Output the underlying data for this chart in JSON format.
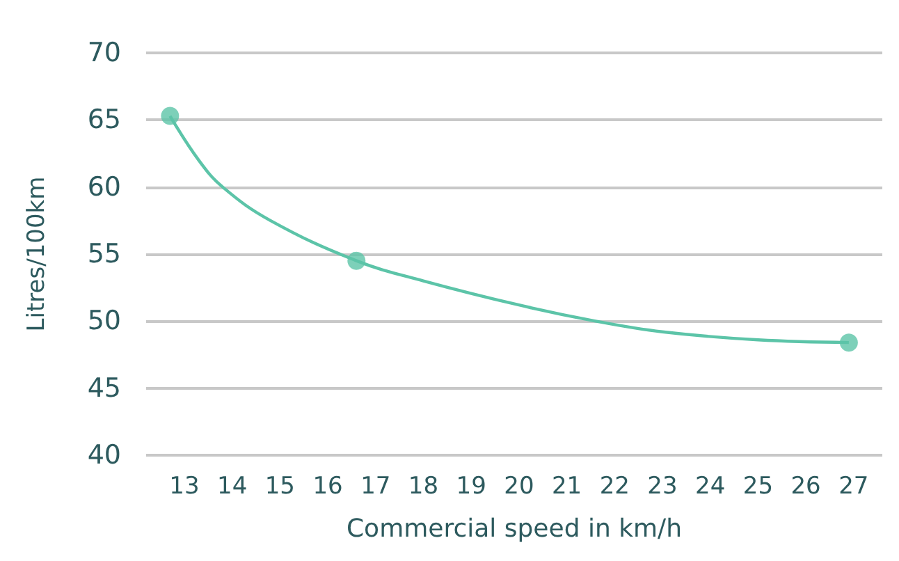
{
  "chart_data": {
    "type": "line",
    "xlabel": "Commercial speed in km/h",
    "ylabel": "Litres/100km",
    "xlim": [
      12.2,
      27.6
    ],
    "xticks": [
      13,
      14,
      15,
      16,
      17,
      18,
      19,
      20,
      21,
      22,
      23,
      24,
      25,
      26,
      27
    ],
    "ylim": [
      40,
      70
    ],
    "yticks": [
      40,
      45,
      50,
      55,
      60,
      65,
      70
    ],
    "grid": "y",
    "series": [
      {
        "color": "#5cc4a8",
        "marker": "none",
        "x": [
          12.7,
          13.3,
          13.8,
          14.8,
          16.6,
          18,
          20,
          21.6,
          23,
          25,
          26.9
        ],
        "values": [
          65.3,
          62,
          60,
          57.5,
          54.5,
          53,
          51.2,
          50,
          49.2,
          48.6,
          48.4
        ]
      },
      {
        "type": "scatter",
        "color": "#5cc4a8",
        "marker": "circle",
        "x": [
          12.7,
          16.6,
          26.9
        ],
        "values": [
          65.3,
          54.5,
          48.4
        ]
      }
    ]
  }
}
